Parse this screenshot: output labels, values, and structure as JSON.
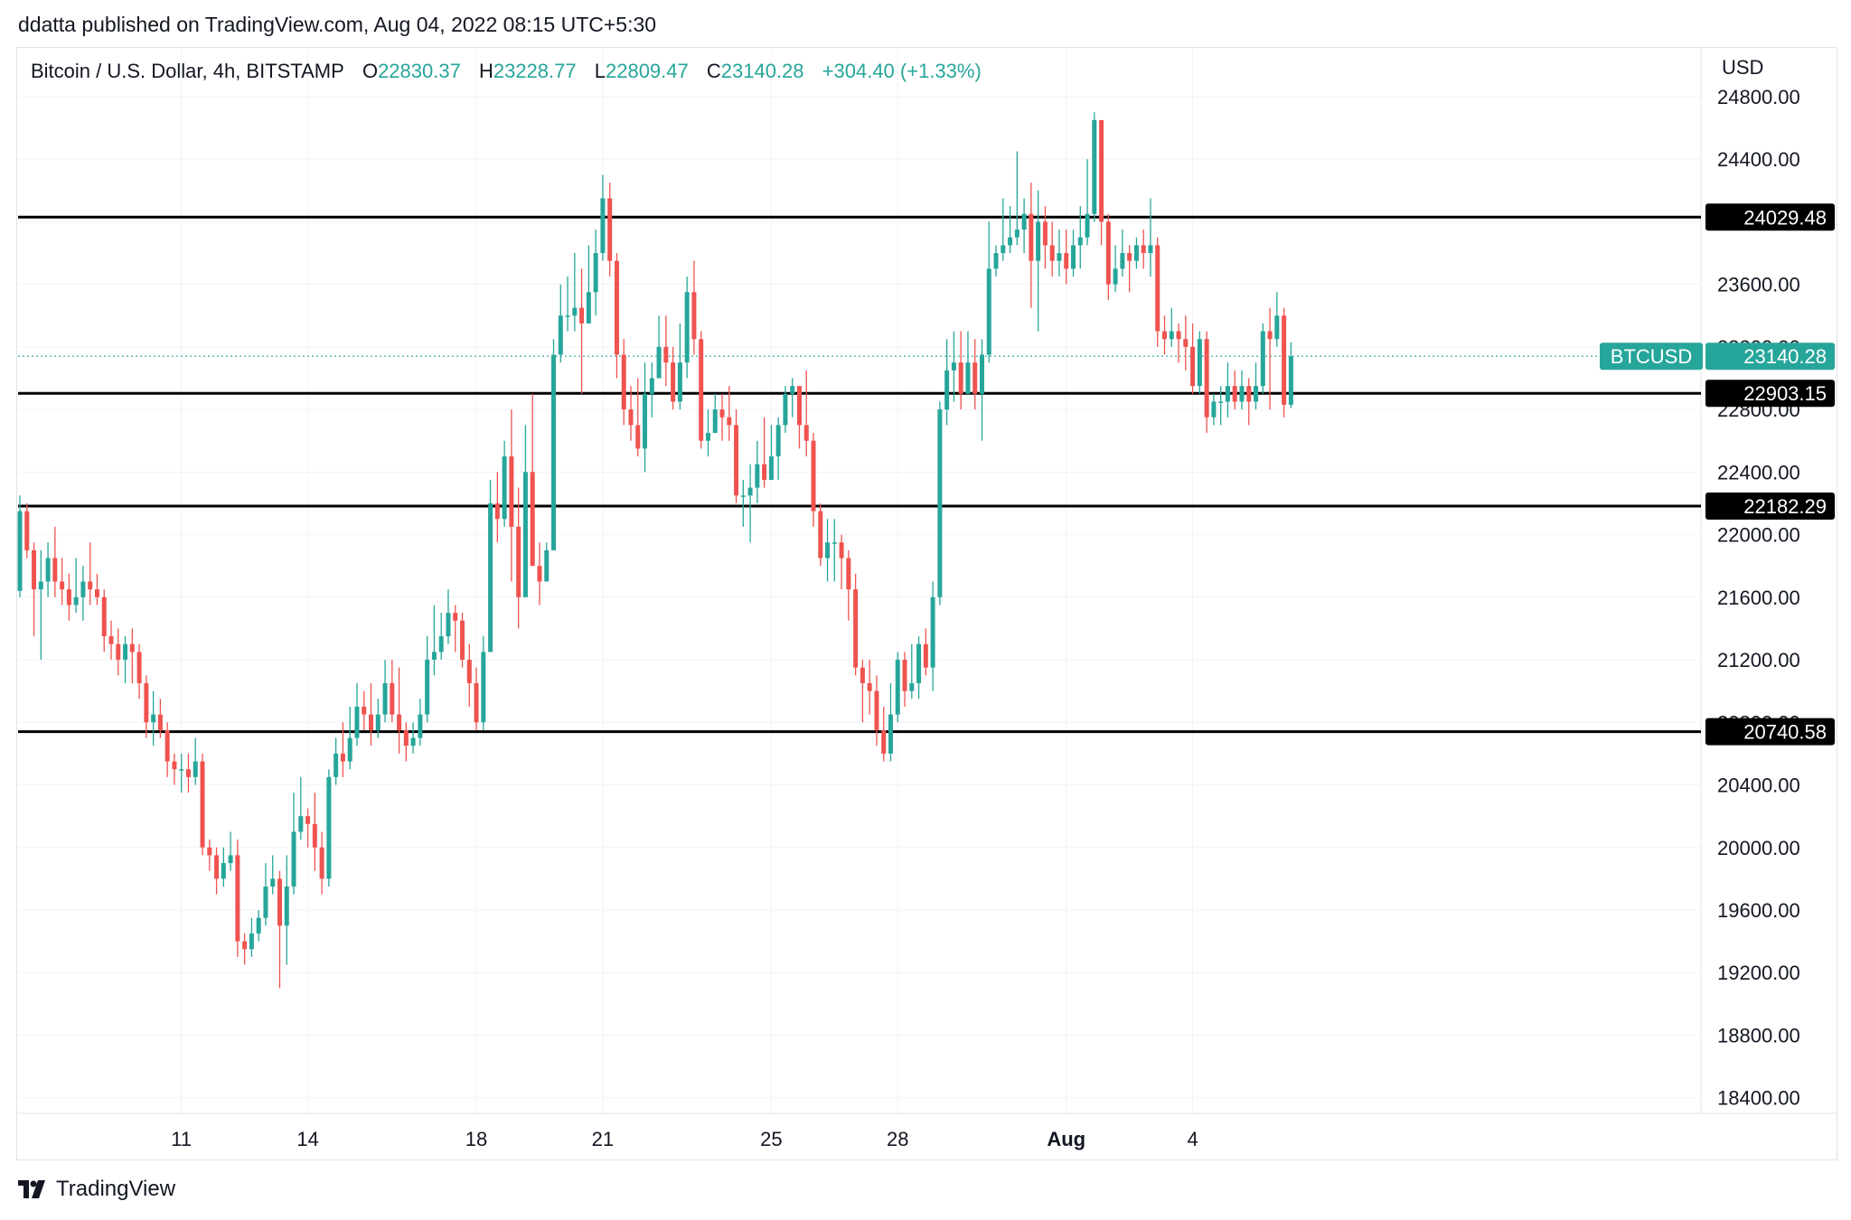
{
  "header": {
    "publisher_line": "ddatta published on TradingView.com, Aug 04, 2022 08:15 UTC+5:30"
  },
  "legend": {
    "symbol": "Bitcoin / U.S. Dollar, 4h, BITSTAMP",
    "open_label": "O",
    "open": "22830.37",
    "high_label": "H",
    "high": "23228.77",
    "low_label": "L",
    "low": "22809.47",
    "close_label": "C",
    "close": "23140.28",
    "change": "+304.40 (+1.33%)"
  },
  "price_axis": {
    "unit": "USD"
  },
  "footer": {
    "brand": "TradingView"
  },
  "colors": {
    "up": "#26a69a",
    "down": "#ef5350",
    "grid": "#f0f3fa",
    "level_line": "#000000",
    "tag_bg": "#000000"
  },
  "chart_data": {
    "type": "candlestick",
    "interval": "4h",
    "ylim": [
      18300,
      25100
    ],
    "y_ticks": [
      "18400.00",
      "18800.00",
      "19200.00",
      "19600.00",
      "20000.00",
      "20400.00",
      "20800.00",
      "21200.00",
      "21600.00",
      "22000.00",
      "22400.00",
      "22800.00",
      "23200.00",
      "23600.00",
      "24000.00",
      "24400.00",
      "24800.00"
    ],
    "x_ticks": [
      {
        "label": "11",
        "index": 23
      },
      {
        "label": "14",
        "index": 41
      },
      {
        "label": "18",
        "index": 65
      },
      {
        "label": "21",
        "index": 83
      },
      {
        "label": "25",
        "index": 107
      },
      {
        "label": "28",
        "index": 125
      },
      {
        "label": "Aug",
        "index": 149
      },
      {
        "label": "4",
        "index": 167
      }
    ],
    "levels": [
      "24029.48",
      "22903.15",
      "22182.29",
      "20740.58"
    ],
    "last_price": {
      "label": "BTCUSD",
      "value": "23140.28"
    },
    "candles": [
      [
        21640,
        22150,
        22250,
        21600
      ],
      [
        22150,
        21900,
        22200,
        21850
      ],
      [
        21900,
        21650,
        21950,
        21350
      ],
      [
        21650,
        21700,
        21900,
        21200
      ],
      [
        21700,
        21850,
        21950,
        21600
      ],
      [
        21850,
        21700,
        22050,
        21600
      ],
      [
        21700,
        21650,
        21850,
        21550
      ],
      [
        21650,
        21550,
        21750,
        21450
      ],
      [
        21550,
        21600,
        21850,
        21500
      ],
      [
        21600,
        21700,
        21800,
        21450
      ],
      [
        21700,
        21650,
        21950,
        21550
      ],
      [
        21650,
        21600,
        21750,
        21550
      ],
      [
        21600,
        21350,
        21650,
        21250
      ],
      [
        21350,
        21300,
        21450,
        21200
      ],
      [
        21300,
        21200,
        21400,
        21100
      ],
      [
        21200,
        21300,
        21350,
        21050
      ],
      [
        21300,
        21250,
        21400,
        21050
      ],
      [
        21250,
        21050,
        21300,
        20950
      ],
      [
        21050,
        20800,
        21100,
        20700
      ],
      [
        20800,
        20850,
        21000,
        20650
      ],
      [
        20850,
        20750,
        20950,
        20700
      ],
      [
        20750,
        20550,
        20800,
        20450
      ],
      [
        20550,
        20500,
        20600,
        20400
      ],
      [
        20500,
        20500,
        20600,
        20350
      ],
      [
        20500,
        20450,
        20600,
        20350
      ],
      [
        20450,
        20550,
        20700,
        20400
      ],
      [
        20550,
        20000,
        20600,
        19950
      ],
      [
        20000,
        19950,
        20050,
        19850
      ],
      [
        19950,
        19800,
        20000,
        19700
      ],
      [
        19800,
        19900,
        20000,
        19750
      ],
      [
        19900,
        19950,
        20100,
        19850
      ],
      [
        19950,
        19400,
        20050,
        19300
      ],
      [
        19400,
        19350,
        19450,
        19250
      ],
      [
        19350,
        19450,
        19550,
        19300
      ],
      [
        19450,
        19550,
        19600,
        19400
      ],
      [
        19550,
        19750,
        19900,
        19500
      ],
      [
        19750,
        19800,
        19950,
        19700
      ],
      [
        19800,
        19500,
        19850,
        19100
      ],
      [
        19500,
        19750,
        19950,
        19250
      ],
      [
        19750,
        20100,
        20350,
        19700
      ],
      [
        20100,
        20200,
        20450,
        20050
      ],
      [
        20200,
        20150,
        20250,
        20000
      ],
      [
        20150,
        20000,
        20350,
        19850
      ],
      [
        20000,
        19800,
        20100,
        19700
      ],
      [
        19800,
        20450,
        20500,
        19750
      ],
      [
        20450,
        20600,
        20700,
        20400
      ],
      [
        20600,
        20550,
        20800,
        20450
      ],
      [
        20550,
        20700,
        20900,
        20500
      ],
      [
        20700,
        20900,
        21050,
        20650
      ],
      [
        20900,
        20850,
        21000,
        20750
      ],
      [
        20850,
        20750,
        21050,
        20650
      ],
      [
        20750,
        20850,
        20950,
        20700
      ],
      [
        20850,
        21050,
        21200,
        20800
      ],
      [
        21050,
        20850,
        21200,
        20800
      ],
      [
        20850,
        20750,
        21150,
        20600
      ],
      [
        20750,
        20650,
        20800,
        20550
      ],
      [
        20650,
        20700,
        20800,
        20600
      ],
      [
        20700,
        20850,
        20950,
        20650
      ],
      [
        20850,
        21200,
        21350,
        20800
      ],
      [
        21200,
        21250,
        21550,
        21100
      ],
      [
        21250,
        21350,
        21500,
        21200
      ],
      [
        21350,
        21500,
        21650,
        21300
      ],
      [
        21500,
        21450,
        21550,
        21250
      ],
      [
        21450,
        21200,
        21500,
        21150
      ],
      [
        21200,
        21050,
        21300,
        20900
      ],
      [
        21050,
        20800,
        21150,
        20750
      ],
      [
        20800,
        21250,
        21350,
        20750
      ],
      [
        21250,
        22200,
        22350,
        21300
      ],
      [
        22200,
        22100,
        22400,
        21950
      ],
      [
        22100,
        22500,
        22600,
        22050
      ],
      [
        22500,
        22050,
        22800,
        21700
      ],
      [
        22050,
        21600,
        22300,
        21400
      ],
      [
        21600,
        22400,
        22700,
        21600
      ],
      [
        22400,
        21800,
        22900,
        21800
      ],
      [
        21800,
        21700,
        21950,
        21550
      ],
      [
        21700,
        21900,
        21950,
        21750
      ],
      [
        21900,
        23150,
        23250,
        21900
      ],
      [
        23150,
        23400,
        23600,
        23100
      ],
      [
        23400,
        23400,
        23650,
        23300
      ],
      [
        23400,
        23450,
        23800,
        23300
      ],
      [
        23450,
        23350,
        23700,
        22900
      ],
      [
        23350,
        23550,
        23850,
        23350
      ],
      [
        23550,
        23800,
        23950,
        23400
      ],
      [
        23800,
        24150,
        24300,
        23750
      ],
      [
        24150,
        23750,
        24250,
        23650
      ],
      [
        23750,
        23150,
        23800,
        23000
      ],
      [
        23150,
        22800,
        23250,
        22700
      ],
      [
        22800,
        22700,
        22950,
        22600
      ],
      [
        22700,
        22550,
        23000,
        22500
      ],
      [
        22550,
        22900,
        23100,
        22400
      ],
      [
        22900,
        23000,
        23100,
        22750
      ],
      [
        23000,
        23200,
        23400,
        23000
      ],
      [
        23200,
        23100,
        23400,
        22950
      ],
      [
        23100,
        22850,
        23200,
        22800
      ],
      [
        22850,
        23100,
        23350,
        22800
      ],
      [
        23100,
        23550,
        23650,
        23000
      ],
      [
        23550,
        23250,
        23750,
        23150
      ],
      [
        23250,
        22600,
        23300,
        22550
      ],
      [
        22600,
        22650,
        22800,
        22500
      ],
      [
        22650,
        22800,
        22900,
        22650
      ],
      [
        22800,
        22750,
        22900,
        22600
      ],
      [
        22750,
        22700,
        22950,
        22600
      ],
      [
        22700,
        22250,
        22800,
        22200
      ],
      [
        22250,
        22250,
        22350,
        22050
      ],
      [
        22250,
        22300,
        22450,
        21950
      ],
      [
        22300,
        22450,
        22600,
        22200
      ],
      [
        22450,
        22350,
        22750,
        22300
      ],
      [
        22350,
        22500,
        22700,
        22400
      ],
      [
        22500,
        22700,
        22750,
        22350
      ],
      [
        22700,
        22900,
        22950,
        22650
      ],
      [
        22900,
        22950,
        23000,
        22750
      ],
      [
        22950,
        22700,
        22950,
        22550
      ],
      [
        22700,
        22600,
        23050,
        22500
      ],
      [
        22600,
        22150,
        22650,
        22050
      ],
      [
        22150,
        21850,
        22200,
        21800
      ],
      [
        21850,
        21950,
        22100,
        21700
      ],
      [
        21950,
        21950,
        22100,
        21700
      ],
      [
        21950,
        21850,
        22000,
        21650
      ],
      [
        21850,
        21650,
        21900,
        21450
      ],
      [
        21650,
        21150,
        21750,
        21100
      ],
      [
        21150,
        21050,
        21200,
        20800
      ],
      [
        21050,
        21000,
        21200,
        20850
      ],
      [
        21000,
        20750,
        21100,
        20650
      ],
      [
        20750,
        20600,
        20900,
        20550
      ],
      [
        20600,
        20850,
        21050,
        20550
      ],
      [
        20850,
        21200,
        21250,
        20800
      ],
      [
        21200,
        21000,
        21250,
        20900
      ],
      [
        21000,
        21050,
        21300,
        20950
      ],
      [
        21050,
        21300,
        21350,
        20950
      ],
      [
        21300,
        21150,
        21400,
        21100
      ],
      [
        21150,
        21600,
        21700,
        21000
      ],
      [
        21600,
        22800,
        22850,
        21550
      ],
      [
        22800,
        23050,
        23250,
        22700
      ],
      [
        23050,
        23100,
        23300,
        22850
      ],
      [
        23100,
        22900,
        23300,
        22800
      ],
      [
        22900,
        23100,
        23300,
        22900
      ],
      [
        23100,
        22900,
        23250,
        22800
      ],
      [
        22900,
        23150,
        23250,
        22600
      ],
      [
        23150,
        23700,
        24000,
        23100
      ],
      [
        23700,
        23800,
        23850,
        23650
      ],
      [
        23800,
        23850,
        24150,
        23750
      ],
      [
        23850,
        23900,
        24100,
        23800
      ],
      [
        23900,
        23950,
        24450,
        23850
      ],
      [
        23950,
        24050,
        24150,
        23800
      ],
      [
        24050,
        23750,
        24250,
        23450
      ],
      [
        23750,
        24000,
        24200,
        23300
      ],
      [
        24000,
        23850,
        24100,
        23700
      ],
      [
        23850,
        23750,
        24000,
        23650
      ],
      [
        23750,
        23800,
        23950,
        23650
      ],
      [
        23800,
        23700,
        23950,
        23600
      ],
      [
        23700,
        23850,
        23950,
        23650
      ],
      [
        23850,
        23900,
        24100,
        23700
      ],
      [
        23900,
        24050,
        24400,
        23850
      ],
      [
        24050,
        24650,
        24700,
        24000
      ],
      [
        24650,
        24000,
        24600,
        23850
      ],
      [
        24000,
        23600,
        24050,
        23500
      ],
      [
        23600,
        23700,
        23850,
        23550
      ],
      [
        23700,
        23800,
        23950,
        23650
      ],
      [
        23800,
        23750,
        23850,
        23550
      ],
      [
        23750,
        23850,
        23900,
        23700
      ],
      [
        23850,
        23800,
        23950,
        23700
      ],
      [
        23800,
        23850,
        24150,
        23650
      ],
      [
        23850,
        23300,
        23900,
        23200
      ],
      [
        23300,
        23250,
        23400,
        23150
      ],
      [
        23250,
        23300,
        23450,
        23200
      ],
      [
        23300,
        23250,
        23350,
        23100
      ],
      [
        23250,
        23200,
        23400,
        23050
      ],
      [
        23200,
        22950,
        23350,
        22900
      ],
      [
        22950,
        23250,
        23300,
        22900
      ],
      [
        23250,
        22750,
        23300,
        22650
      ],
      [
        22750,
        22850,
        22900,
        22700
      ],
      [
        22850,
        22850,
        22950,
        22700
      ],
      [
        22850,
        22950,
        23100,
        22750
      ],
      [
        22950,
        22850,
        23050,
        22800
      ],
      [
        22850,
        22950,
        23050,
        22800
      ],
      [
        22950,
        22850,
        23000,
        22700
      ],
      [
        22850,
        22950,
        23100,
        22800
      ],
      [
        22950,
        23300,
        23350,
        22900
      ],
      [
        23300,
        23250,
        23450,
        22800
      ],
      [
        23250,
        23400,
        23550,
        23200
      ],
      [
        23400,
        22830,
        23450,
        22750
      ],
      [
        22830,
        23140,
        23230,
        22809
      ]
    ]
  }
}
